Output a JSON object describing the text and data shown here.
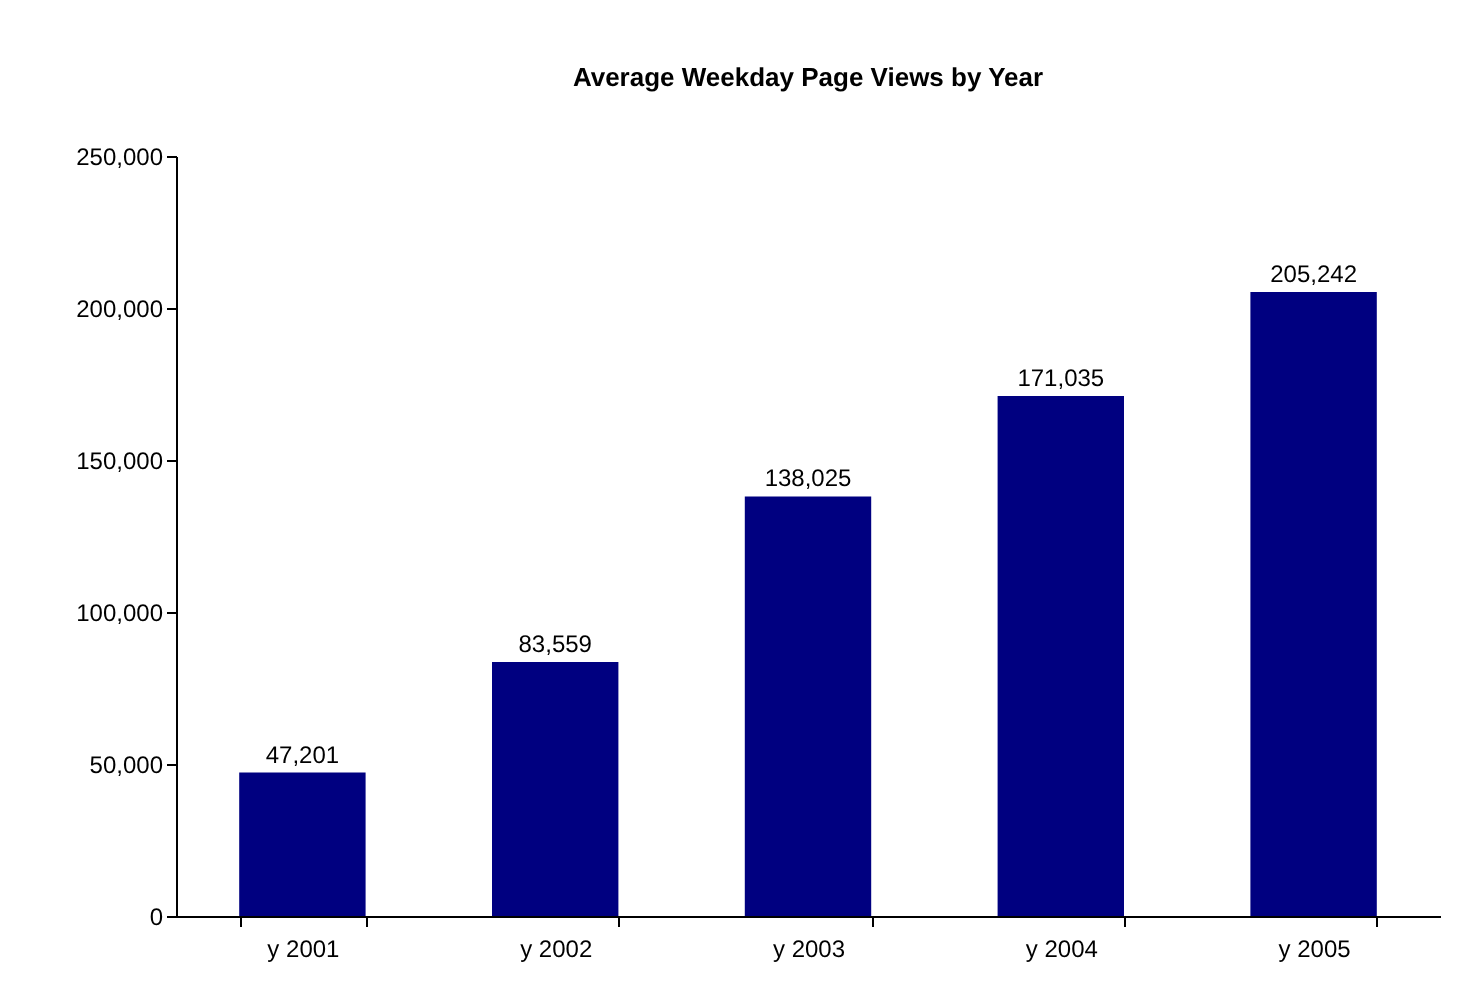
{
  "chart_data": {
    "type": "bar",
    "title": "Average Weekday Page Views by Year",
    "categories": [
      "y 2001",
      "y 2002",
      "y 2003",
      "y 2004",
      "y 2005"
    ],
    "values": [
      47201,
      83559,
      138025,
      171035,
      205242
    ],
    "value_labels": [
      "47,201",
      "83,559",
      "138,025",
      "171,035",
      "205,242"
    ],
    "color": "#000080",
    "ylim": [
      0,
      250000
    ],
    "yticks": [
      0,
      {
        "value": 50000,
        "label": "50,000"
      },
      {
        "value": 100000,
        "label": "100,000"
      },
      {
        "value": 150000,
        "label": "150,000"
      },
      {
        "value": 200000,
        "label": "200,000"
      },
      {
        "value": 250000,
        "label": "250,000"
      }
    ],
    "grid": false
  }
}
